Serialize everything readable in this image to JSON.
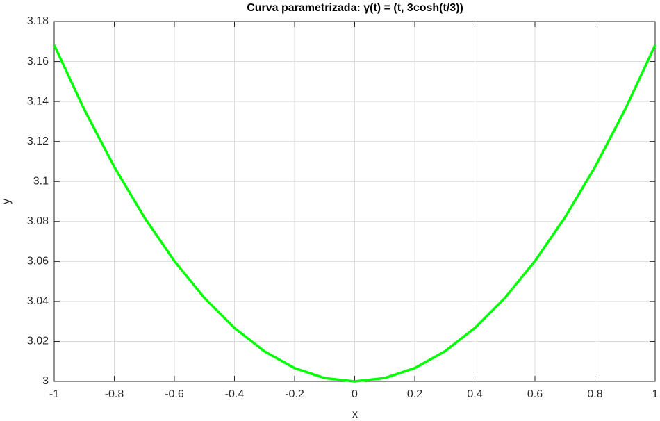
{
  "chart_data": {
    "type": "line",
    "title": "Curva  parametrizada:  γ(t)  =  (t,  3cosh(t/3))",
    "x_label": "x",
    "y_label": "y",
    "x": [
      -1,
      -0.9,
      -0.8,
      -0.7,
      -0.6,
      -0.5,
      -0.4,
      -0.3,
      -0.2,
      -0.1,
      0,
      0.1,
      0.2,
      0.3,
      0.4,
      0.5,
      0.6,
      0.7,
      0.8,
      0.9,
      1
    ],
    "series": [
      {
        "color": "#00ff00",
        "values": [
          3.16821,
          3.13601,
          3.1073,
          3.08204,
          3.0602,
          3.04176,
          3.02671,
          3.01501,
          3.00667,
          3.00167,
          3,
          3.00167,
          3.00667,
          3.01501,
          3.02671,
          3.04176,
          3.0602,
          3.08204,
          3.1073,
          3.13601,
          3.16821
        ]
      }
    ],
    "xlim": [
      -1,
      1
    ],
    "xticks": [
      -1,
      -0.8,
      -0.6,
      -0.4,
      -0.2,
      0,
      0.2,
      0.4,
      0.6,
      0.8,
      1
    ],
    "ylim": [
      3,
      3.18
    ],
    "yticks": [
      3,
      3.02,
      3.04,
      3.06,
      3.08,
      3.1,
      3.12,
      3.14,
      3.16,
      3.18
    ],
    "grid": true
  }
}
